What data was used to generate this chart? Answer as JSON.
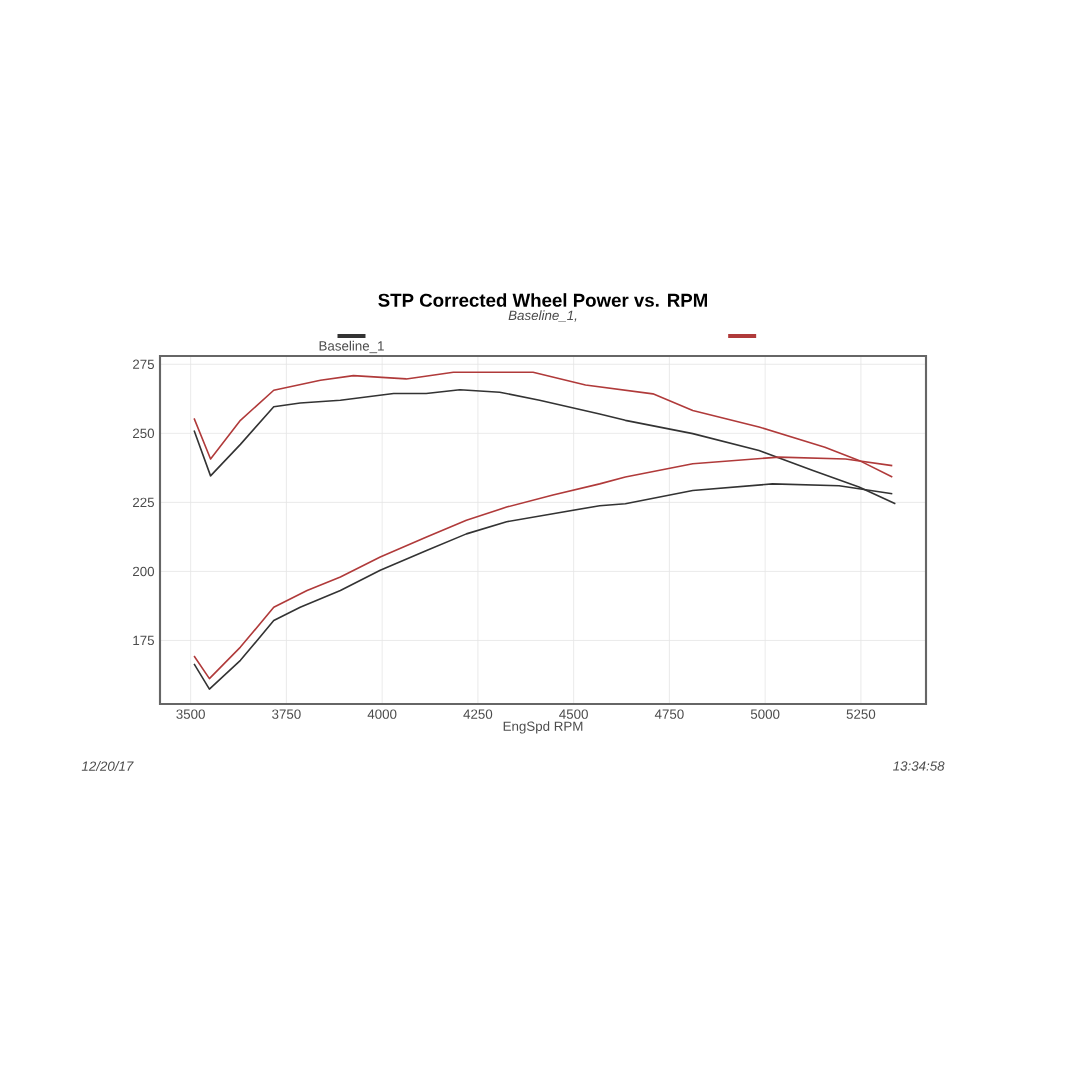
{
  "chart_data": {
    "type": "line",
    "title": "STP Corrected Wheel Power vs. RPM",
    "subtitle": "Baseline_1,",
    "xlabel": "EngSpd  RPM",
    "xlim": [
      3420,
      5420
    ],
    "ylim": [
      152,
      278
    ],
    "xticks": [
      3500,
      3750,
      4000,
      4250,
      4500,
      4750,
      5000,
      5250
    ],
    "yticks": [
      175,
      200,
      225,
      250,
      275
    ],
    "grid": true,
    "legend": "top",
    "marker": "none",
    "line_style": "solid",
    "annotations": [
      "12/20/17",
      "13:34:58"
    ],
    "series": [
      {
        "name": "Baseline_1",
        "color": "#333333",
        "x": [
          3509,
          3552,
          3630,
          3717,
          3786,
          3891,
          4030,
          4115,
          4203,
          4307,
          4411,
          4568,
          4635,
          4811,
          4984,
          5123,
          5245,
          5340
        ],
        "values": [
          251,
          234.6,
          246,
          259.6,
          261,
          262,
          264.4,
          264.4,
          265.8,
          264.9,
          262,
          257,
          254.7,
          249.9,
          243.8,
          236.6,
          230.6,
          224.5
        ]
      },
      {
        "color": "#b03a3a",
        "x": [
          3509,
          3552,
          3630,
          3717,
          3839,
          3925,
          4063,
          4186,
          4394,
          4531,
          4707,
          4811,
          4984,
          5156,
          5245,
          5332
        ],
        "values": [
          255.4,
          240.7,
          254.7,
          265.6,
          269.2,
          270.9,
          269.7,
          272.1,
          272.1,
          267.5,
          264.3,
          258.3,
          252.3,
          245,
          240.2,
          234.2
        ]
      },
      {
        "color": "#333333",
        "x": [
          3509,
          3549,
          3630,
          3717,
          3786,
          3891,
          3995,
          4116,
          4220,
          4325,
          4446,
          4568,
          4635,
          4811,
          5019,
          5193,
          5332
        ],
        "values": [
          166.5,
          157.4,
          167.8,
          182.2,
          187,
          193.1,
          200.4,
          207.6,
          213.6,
          218,
          220.9,
          223.8,
          224.5,
          229.3,
          231.7,
          231,
          228.1
        ]
      },
      {
        "color": "#b03a3a",
        "x": [
          3509,
          3549,
          3630,
          3717,
          3804,
          3891,
          3995,
          4116,
          4220,
          4325,
          4446,
          4568,
          4635,
          4811,
          5036,
          5210,
          5332
        ],
        "values": [
          169.4,
          161.2,
          172.6,
          187,
          193.1,
          198,
          205.2,
          212.5,
          218.5,
          223.3,
          227.7,
          231.7,
          234.2,
          239,
          241.4,
          240.7,
          238.3
        ]
      }
    ]
  }
}
